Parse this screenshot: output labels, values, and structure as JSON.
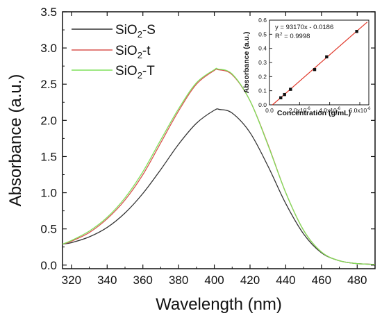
{
  "chart_data": [
    {
      "type": "line",
      "xlabel": "Wavelength (nm)",
      "ylabel": "Absorbance (a.u.)",
      "xlim": [
        315,
        490
      ],
      "ylim": [
        -0.05,
        3.5
      ],
      "x_ticks": [
        320,
        340,
        360,
        380,
        400,
        420,
        440,
        460,
        480
      ],
      "y_ticks": [
        0.0,
        0.5,
        1.0,
        1.5,
        2.0,
        2.5,
        3.0,
        3.5
      ],
      "x_tick_labels": [
        "320",
        "340",
        "360",
        "380",
        "400",
        "420",
        "440",
        "460",
        "480"
      ],
      "y_tick_labels": [
        "0.0",
        "0.5",
        "1.0",
        "1.5",
        "2.0",
        "2.5",
        "3.0",
        "3.5"
      ],
      "legend_position": "top-left",
      "series": [
        {
          "name": "SiO2-S",
          "name_base": "SiO",
          "name_sub": "2",
          "name_suffix": "-S",
          "color": "#333333",
          "x": [
            315,
            320,
            330,
            340,
            350,
            360,
            370,
            380,
            390,
            400,
            403,
            410,
            420,
            430,
            440,
            450,
            460,
            470,
            480,
            490
          ],
          "y": [
            0.29,
            0.31,
            0.39,
            0.52,
            0.72,
            0.99,
            1.32,
            1.67,
            1.96,
            2.14,
            2.15,
            2.1,
            1.83,
            1.37,
            0.85,
            0.43,
            0.17,
            0.06,
            0.02,
            0.01
          ]
        },
        {
          "name": "SiO2-t",
          "name_base": "SiO",
          "name_sub": "2",
          "name_suffix": "-t",
          "color": "#d9534f",
          "x": [
            315,
            320,
            330,
            340,
            350,
            360,
            370,
            380,
            390,
            400,
            402,
            410,
            420,
            430,
            440,
            450,
            460,
            470,
            480,
            490
          ],
          "y": [
            0.29,
            0.33,
            0.45,
            0.64,
            0.9,
            1.25,
            1.69,
            2.13,
            2.5,
            2.69,
            2.7,
            2.63,
            2.27,
            1.67,
            1.0,
            0.48,
            0.18,
            0.06,
            0.02,
            0.01
          ]
        },
        {
          "name": "SiO2-T",
          "name_base": "SiO",
          "name_sub": "2",
          "name_suffix": "-T",
          "color": "#7fe05a",
          "x": [
            315,
            320,
            330,
            340,
            350,
            360,
            370,
            380,
            390,
            400,
            402,
            410,
            420,
            430,
            440,
            450,
            460,
            470,
            480,
            490
          ],
          "y": [
            0.29,
            0.34,
            0.47,
            0.66,
            0.93,
            1.29,
            1.73,
            2.16,
            2.52,
            2.7,
            2.71,
            2.64,
            2.27,
            1.66,
            1.0,
            0.48,
            0.18,
            0.06,
            0.02,
            0.01
          ]
        }
      ]
    },
    {
      "type": "scatter",
      "xlabel": "Concentration (g/mL)",
      "ylabel": "Absorbance (a.u.)",
      "xlim": [
        0,
        6.6e-06
      ],
      "ylim": [
        0,
        0.6
      ],
      "x_ticks": [
        0,
        2e-06,
        4e-06,
        6e-06
      ],
      "x_tick_labels": [
        {
          "mantissa": "0.0",
          "exp": ""
        },
        {
          "mantissa": "2.0x10",
          "exp": "-6"
        },
        {
          "mantissa": "4.0x10",
          "exp": "-6"
        },
        {
          "mantissa": "6.0x10",
          "exp": "-6"
        }
      ],
      "y_ticks": [
        0.0,
        0.1,
        0.2,
        0.3,
        0.4,
        0.5,
        0.6
      ],
      "y_tick_labels": [
        "0.0",
        "0.1",
        "0.2",
        "0.3",
        "0.4",
        "0.5",
        "0.6"
      ],
      "equation": "y = 93170x - 0.0186",
      "r2_label_base": "R",
      "r2_label_exp": "2",
      "r2_value": " = 0.9998",
      "fit": {
        "slope": 93170,
        "intercept": -0.0186,
        "x_range": [
          2e-07,
          6.5e-06
        ],
        "color": "#e0392b"
      },
      "points": {
        "x": [
          7.5e-07,
          1e-06,
          1.4e-06,
          3e-06,
          3.8e-06,
          5.8e-06
        ],
        "y": [
          0.05,
          0.073,
          0.11,
          0.25,
          0.34,
          0.52
        ],
        "color": "#111111"
      }
    }
  ]
}
